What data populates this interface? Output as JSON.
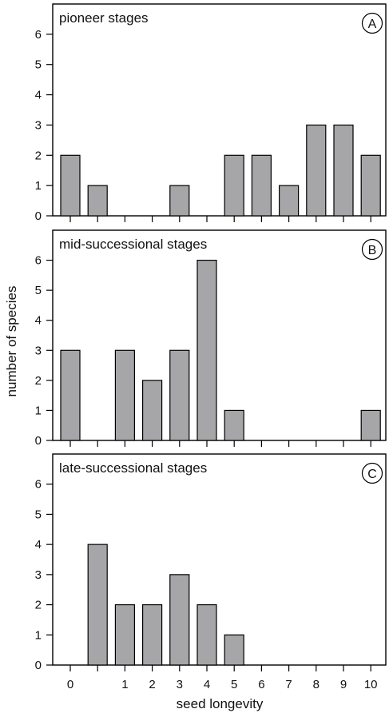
{
  "chart_data": {
    "type": "bar",
    "ylabel": "number of species",
    "xlabel": "seed longevity",
    "x_tick_labels": [
      "0",
      "",
      "1",
      "2",
      "3",
      "4",
      "5",
      "6",
      "7",
      "8",
      "9",
      "10"
    ],
    "y_ticks": [
      0,
      1,
      2,
      3,
      4,
      5,
      6
    ],
    "ylim": [
      0,
      7
    ],
    "bar_color": "#a6a6a8",
    "panels": [
      {
        "letter": "A",
        "title": "pioneer stages",
        "values": [
          2,
          1,
          0,
          0,
          1,
          0,
          2,
          2,
          1,
          3,
          3,
          2
        ]
      },
      {
        "letter": "B",
        "title": "mid-successional stages",
        "values": [
          3,
          0,
          3,
          2,
          3,
          6,
          1,
          0,
          0,
          0,
          0,
          1
        ]
      },
      {
        "letter": "C",
        "title": "late-successional stages",
        "values": [
          0,
          4,
          2,
          2,
          3,
          2,
          1,
          0,
          0,
          0,
          0,
          0
        ]
      }
    ]
  }
}
